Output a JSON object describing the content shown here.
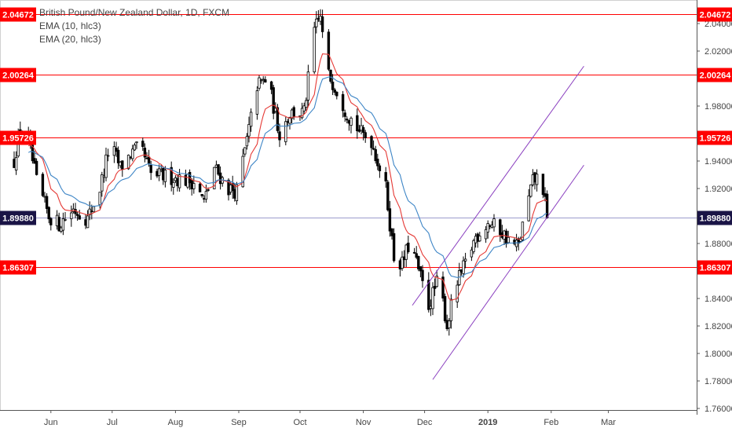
{
  "legend": {
    "title": "British Pound/New Zealand Dollar, 1D, FXCM",
    "ema10": "EMA (10, hlc3)",
    "ema20": "EMA (20, hlc3)"
  },
  "colors": {
    "candle": "#000000",
    "ema10": "#e53935",
    "ema20": "#3d85c6",
    "level_line": "#ff0000",
    "current_line": "#9c9ccc",
    "channel": "#8a3fbf",
    "badge_level": "#ff0000",
    "badge_current": "#1a1446"
  },
  "chart_data": {
    "type": "candlestick",
    "y_ticks": [
      "2.04000",
      "2.02000",
      "2.00000",
      "1.98000",
      "1.96000",
      "1.94000",
      "1.92000",
      "1.90000",
      "1.88000",
      "1.86000",
      "1.84000",
      "1.82000",
      "1.80000",
      "1.78000",
      "1.76000"
    ],
    "x_ticks": [
      "Jun",
      "Jul",
      "Aug",
      "Sep",
      "Oct",
      "Nov",
      "Dec",
      "2019",
      "Feb",
      "Mar"
    ],
    "ylim": [
      1.755,
      2.052
    ],
    "levels": [
      {
        "label": "2.04672",
        "value": 2.04672,
        "kind": "resistance"
      },
      {
        "label": "2.00264",
        "value": 2.00264,
        "kind": "resistance"
      },
      {
        "label": "1.95726",
        "value": 1.95726,
        "kind": "resistance"
      },
      {
        "label": "1.89880",
        "value": 1.8988,
        "kind": "current"
      },
      {
        "label": "1.86307",
        "value": 1.86307,
        "kind": "support"
      }
    ],
    "channel": {
      "lower": [
        {
          "date": "2018-12-05",
          "price": 1.781
        },
        {
          "date": "2019-02-17",
          "price": 1.937
        }
      ],
      "upper": [
        {
          "date": "2018-11-25",
          "price": 1.835
        },
        {
          "date": "2019-02-17",
          "price": 2.009
        }
      ]
    },
    "price_path": [
      {
        "date": "2018-05-14",
        "close": 1.94
      },
      {
        "date": "2018-05-17",
        "close": 1.965
      },
      {
        "date": "2018-05-21",
        "close": 1.955
      },
      {
        "date": "2018-05-25",
        "close": 1.925
      },
      {
        "date": "2018-05-31",
        "close": 1.9
      },
      {
        "date": "2018-06-05",
        "close": 1.894
      },
      {
        "date": "2018-06-12",
        "close": 1.905
      },
      {
        "date": "2018-06-19",
        "close": 1.898
      },
      {
        "date": "2018-06-25",
        "close": 1.92
      },
      {
        "date": "2018-06-30",
        "close": 1.953
      },
      {
        "date": "2018-07-05",
        "close": 1.935
      },
      {
        "date": "2018-07-10",
        "close": 1.945
      },
      {
        "date": "2018-07-15",
        "close": 1.95
      },
      {
        "date": "2018-07-20",
        "close": 1.93
      },
      {
        "date": "2018-07-31",
        "close": 1.928
      },
      {
        "date": "2018-08-10",
        "close": 1.925
      },
      {
        "date": "2018-08-15",
        "close": 1.91
      },
      {
        "date": "2018-08-20",
        "close": 1.935
      },
      {
        "date": "2018-08-27",
        "close": 1.92
      },
      {
        "date": "2018-08-31",
        "close": 1.918
      },
      {
        "date": "2018-09-05",
        "close": 1.955
      },
      {
        "date": "2018-09-10",
        "close": 1.995
      },
      {
        "date": "2018-09-15",
        "close": 2.0
      },
      {
        "date": "2018-09-21",
        "close": 1.96
      },
      {
        "date": "2018-09-26",
        "close": 1.975
      },
      {
        "date": "2018-10-03",
        "close": 1.975
      },
      {
        "date": "2018-10-08",
        "close": 2.035
      },
      {
        "date": "2018-10-11",
        "close": 2.045
      },
      {
        "date": "2018-10-14",
        "close": 2.005
      },
      {
        "date": "2018-10-18",
        "close": 1.995
      },
      {
        "date": "2018-10-24",
        "close": 1.975
      },
      {
        "date": "2018-10-31",
        "close": 1.96
      },
      {
        "date": "2018-11-05",
        "close": 1.955
      },
      {
        "date": "2018-11-12",
        "close": 1.92
      },
      {
        "date": "2018-11-16",
        "close": 1.87
      },
      {
        "date": "2018-11-20",
        "close": 1.865
      },
      {
        "date": "2018-11-24",
        "close": 1.882
      },
      {
        "date": "2018-11-29",
        "close": 1.855
      },
      {
        "date": "2018-12-03",
        "close": 1.835
      },
      {
        "date": "2018-12-08",
        "close": 1.855
      },
      {
        "date": "2018-12-12",
        "close": 1.82
      },
      {
        "date": "2018-12-16",
        "close": 1.848
      },
      {
        "date": "2018-12-21",
        "close": 1.865
      },
      {
        "date": "2018-12-26",
        "close": 1.885
      },
      {
        "date": "2019-01-01",
        "close": 1.895
      },
      {
        "date": "2019-01-07",
        "close": 1.89
      },
      {
        "date": "2019-01-12",
        "close": 1.88
      },
      {
        "date": "2019-01-16",
        "close": 1.878
      },
      {
        "date": "2019-01-19",
        "close": 1.9
      },
      {
        "date": "2019-01-23",
        "close": 1.925
      },
      {
        "date": "2019-01-27",
        "close": 1.93
      },
      {
        "date": "2019-01-30",
        "close": 1.8988
      }
    ]
  }
}
